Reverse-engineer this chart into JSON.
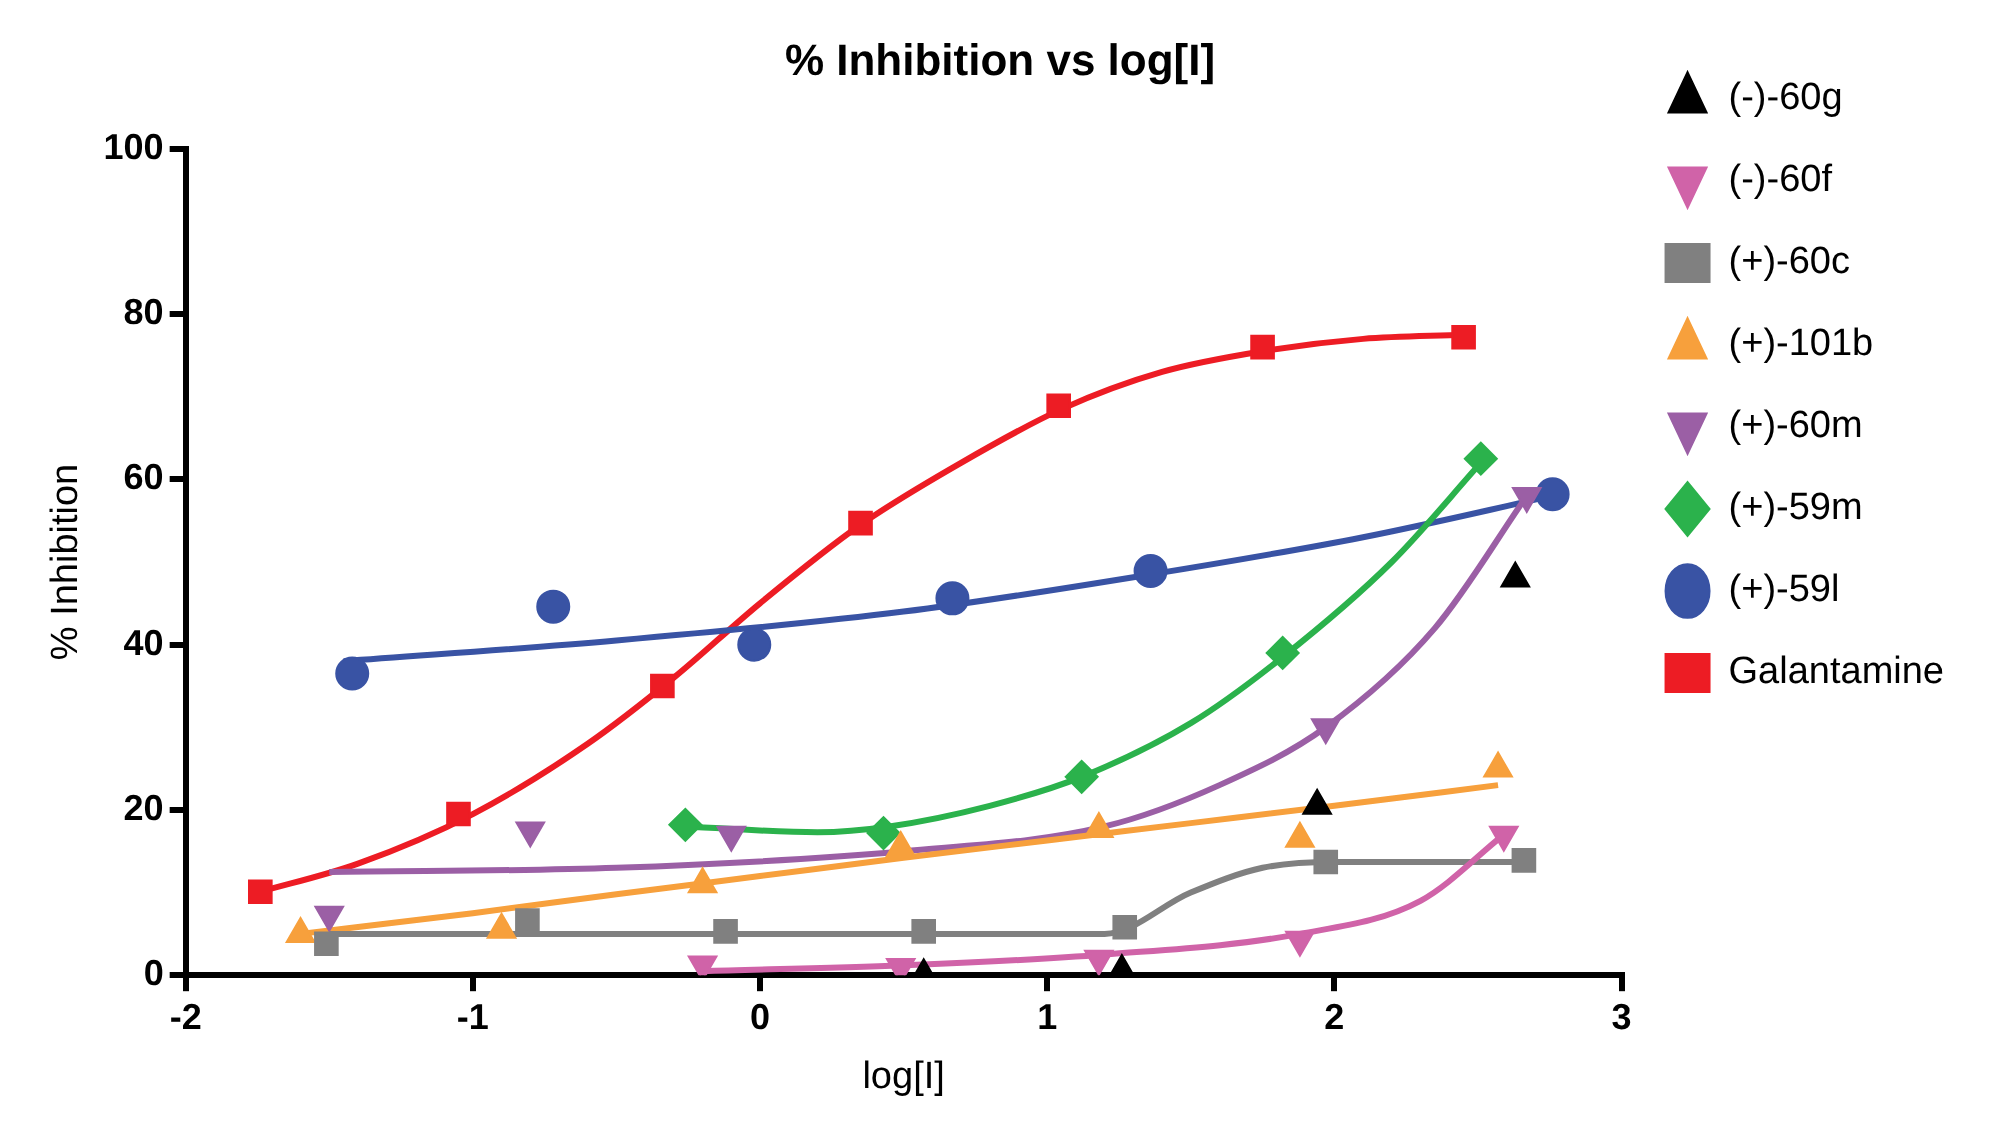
{
  "chart_data": {
    "type": "scatter",
    "title": "% Inhibition vs log[I]",
    "xlabel": "log[I]",
    "ylabel": "% Inhibition",
    "xlim": [
      -2,
      3
    ],
    "xticks": [
      -2,
      -1,
      0,
      1,
      2,
      3
    ],
    "ylim": [
      0,
      100
    ],
    "yticks": [
      0,
      20,
      40,
      60,
      80,
      100
    ],
    "grid": false,
    "legend": "right",
    "series": [
      {
        "name": "(-)-60g",
        "type": "scatter",
        "marker": "triangle",
        "color": "#000000",
        "x": [
          0.57,
          1.26,
          1.94,
          2.63
        ],
        "values": [
          0,
          0.5,
          20.5,
          48
        ]
      },
      {
        "name": "(-)-60f",
        "type": "scatter",
        "marker": "triangle-down",
        "color": "#d063a8",
        "x": [
          -0.2,
          0.49,
          1.18,
          1.88,
          2.59
        ],
        "values": [
          1.3,
          1,
          2,
          4.3,
          17
        ]
      },
      {
        "name": "(+)-60c",
        "type": "scatter",
        "marker": "square",
        "color": "#808080",
        "x": [
          -1.51,
          -0.81,
          -0.12,
          0.57,
          1.27,
          1.97,
          2.66
        ],
        "values": [
          3.8,
          6.6,
          5.3,
          5.3,
          5.8,
          13.7,
          13.9
        ]
      },
      {
        "name": "(+)-101b",
        "type": "scatter",
        "marker": "triangle",
        "color": "#f7a03c",
        "x": [
          -1.6,
          -0.9,
          -0.2,
          0.49,
          1.18,
          1.88,
          2.57
        ],
        "values": [
          5,
          5.5,
          11,
          15.4,
          17.7,
          16.5,
          25
        ]
      },
      {
        "name": "(+)-60m",
        "type": "scatter",
        "marker": "triangle-down",
        "color": "#9b5fa5",
        "x": [
          -1.5,
          -0.8,
          -0.1,
          1.97,
          2.67
        ],
        "values": [
          7.3,
          17.5,
          17,
          30,
          58
        ]
      },
      {
        "name": "(+)-59m",
        "type": "scatter",
        "marker": "diamond",
        "color": "#2bb24c",
        "x": [
          -0.26,
          0.43,
          1.12,
          1.82,
          2.51
        ],
        "values": [
          18.2,
          17.2,
          24,
          39,
          62.5
        ]
      },
      {
        "name": "(+)-59l",
        "type": "scatter",
        "marker": "circle",
        "color": "#3953a4",
        "x": [
          -1.42,
          -0.72,
          -0.02,
          0.67,
          1.36,
          2.76
        ],
        "values": [
          36.5,
          44.6,
          40,
          45.6,
          48.9,
          58.2
        ]
      },
      {
        "name": "Galantamine",
        "type": "scatter",
        "marker": "square",
        "color": "#ed1c24",
        "x": [
          -1.74,
          -1.05,
          -0.34,
          0.35,
          1.04,
          1.75,
          2.45
        ],
        "values": [
          10.1,
          19.5,
          35,
          54.7,
          68.9,
          76,
          77.2
        ]
      },
      {
        "type": "line",
        "marker": "none",
        "color": "#d063a8",
        "x": [
          -0.2,
          0.5,
          1.2,
          1.88,
          2.3,
          2.59
        ],
        "values": [
          0.5,
          1.2,
          2.5,
          5,
          9,
          17
        ]
      },
      {
        "type": "line",
        "marker": "none",
        "color": "#808080",
        "x": [
          -1.5,
          1.2,
          1.5,
          1.75,
          2.0,
          2.66
        ],
        "values": [
          5,
          5,
          10,
          13,
          13.7,
          13.7
        ]
      },
      {
        "type": "line",
        "marker": "none",
        "color": "#f7a03c",
        "x": [
          -1.6,
          -1,
          -0.5,
          0,
          0.5,
          1,
          1.5,
          2,
          2.57
        ],
        "values": [
          5,
          7.5,
          9.8,
          12,
          14.2,
          16.3,
          18.4,
          20.5,
          23
        ]
      },
      {
        "type": "line",
        "marker": "none",
        "color": "#9b5fa5",
        "x": [
          -1.5,
          -0.5,
          0.5,
          1.2,
          1.6,
          1.97,
          2.35,
          2.67
        ],
        "values": [
          12.5,
          13,
          15,
          18,
          23,
          30,
          42,
          58
        ]
      },
      {
        "type": "line",
        "marker": "none",
        "color": "#2bb24c",
        "x": [
          -0.26,
          0.2,
          0.45,
          0.8,
          1.12,
          1.5,
          1.82,
          2.2,
          2.51
        ],
        "values": [
          18,
          17.3,
          18,
          20.5,
          24,
          30.5,
          38.5,
          50,
          62
        ]
      },
      {
        "type": "line",
        "marker": "none",
        "color": "#3953a4",
        "x": [
          -1.45,
          -0.5,
          0.5,
          1.36,
          2.1,
          2.76
        ],
        "values": [
          38,
          40.5,
          44,
          48.5,
          53,
          58
        ]
      },
      {
        "type": "line",
        "marker": "none",
        "color": "#ed1c24",
        "x": [
          -1.75,
          -1.4,
          -1,
          -0.6,
          -0.3,
          0,
          0.35,
          0.7,
          1.05,
          1.4,
          1.75,
          2.1,
          2.45
        ],
        "values": [
          10,
          13.5,
          19.5,
          28,
          36,
          45,
          54.5,
          62,
          68.5,
          73,
          75.5,
          77,
          77.5
        ]
      }
    ]
  }
}
